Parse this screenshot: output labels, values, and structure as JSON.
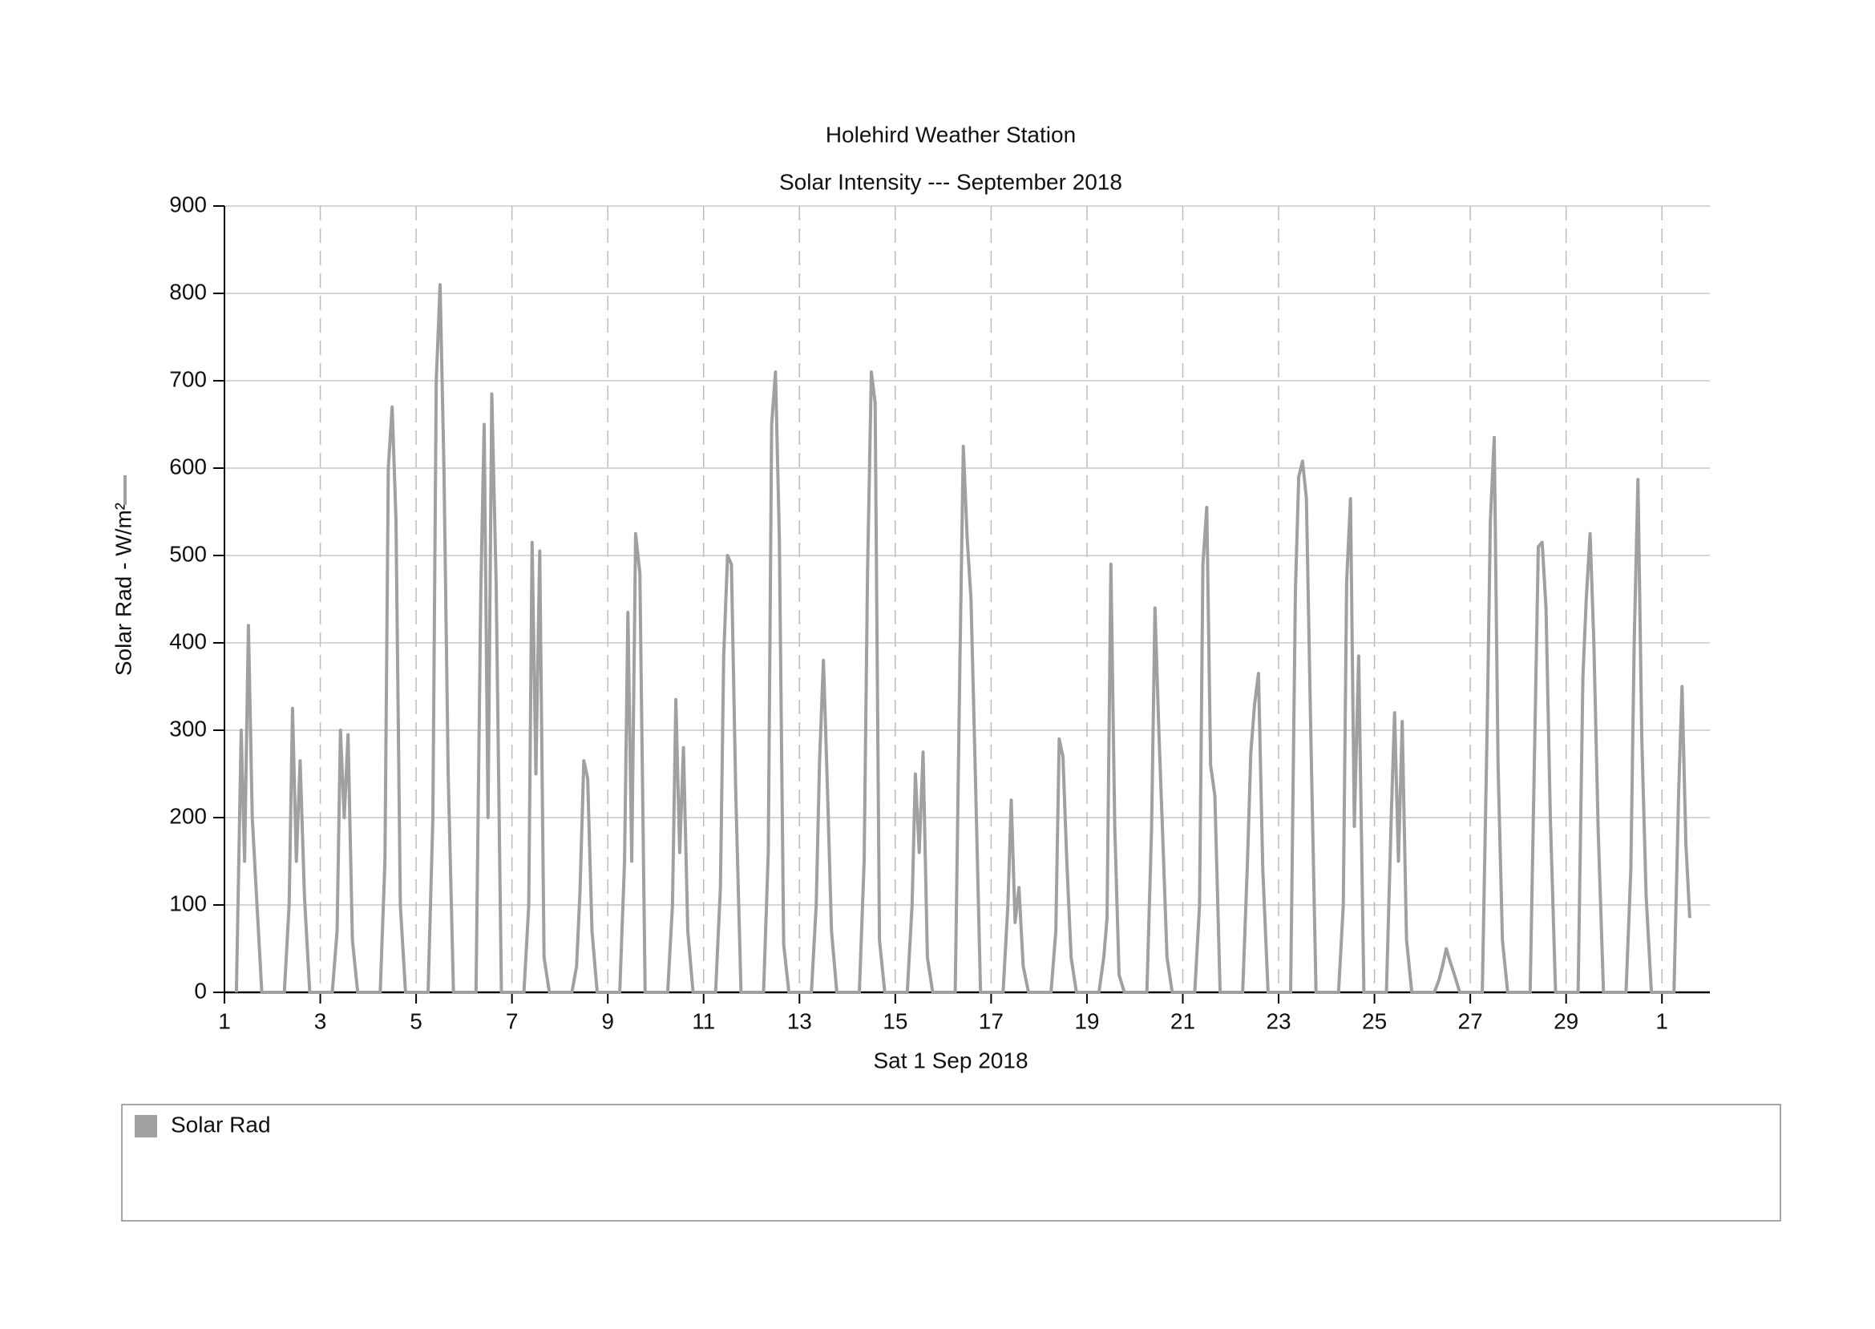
{
  "chart_data": {
    "type": "line",
    "title": "Holehird Weather Station",
    "subtitle": "Solar Intensity --- September 2018",
    "x_label": "Sat 1 Sep 2018",
    "y_label": "Solar Rad - W/m²",
    "x": [
      1.25,
      1.35,
      1.42,
      1.5,
      1.58,
      1.67,
      1.78,
      2.25,
      2.35,
      2.42,
      2.5,
      2.58,
      2.67,
      2.78,
      3.25,
      3.35,
      3.42,
      3.5,
      3.58,
      3.67,
      3.78,
      4.25,
      4.35,
      4.42,
      4.5,
      4.58,
      4.67,
      4.78,
      5.25,
      5.35,
      5.42,
      5.5,
      5.58,
      5.67,
      5.78,
      6.25,
      6.35,
      6.42,
      6.5,
      6.58,
      6.67,
      6.78,
      7.25,
      7.35,
      7.42,
      7.5,
      7.58,
      7.67,
      7.78,
      8.25,
      8.35,
      8.42,
      8.5,
      8.58,
      8.67,
      8.78,
      9.25,
      9.35,
      9.42,
      9.5,
      9.58,
      9.67,
      9.78,
      10.25,
      10.35,
      10.42,
      10.5,
      10.58,
      10.67,
      10.78,
      11.25,
      11.35,
      11.42,
      11.5,
      11.58,
      11.67,
      11.78,
      12.25,
      12.35,
      12.42,
      12.5,
      12.58,
      12.67,
      12.78,
      13.25,
      13.35,
      13.42,
      13.5,
      13.58,
      13.67,
      13.78,
      14.25,
      14.35,
      14.42,
      14.5,
      14.58,
      14.67,
      14.78,
      15.25,
      15.35,
      15.42,
      15.5,
      15.58,
      15.67,
      15.78,
      16.25,
      16.35,
      16.42,
      16.5,
      16.58,
      16.67,
      16.78,
      17.25,
      17.35,
      17.42,
      17.5,
      17.58,
      17.67,
      17.78,
      18.25,
      18.35,
      18.42,
      18.5,
      18.58,
      18.67,
      18.78,
      19.25,
      19.35,
      19.42,
      19.5,
      19.58,
      19.67,
      19.78,
      20.25,
      20.35,
      20.42,
      20.5,
      20.58,
      20.67,
      20.78,
      21.25,
      21.35,
      21.42,
      21.5,
      21.58,
      21.67,
      21.78,
      22.25,
      22.35,
      22.42,
      22.5,
      22.58,
      22.67,
      22.78,
      23.25,
      23.35,
      23.42,
      23.5,
      23.58,
      23.67,
      23.78,
      24.25,
      24.35,
      24.42,
      24.5,
      24.58,
      24.67,
      24.78,
      25.25,
      25.35,
      25.42,
      25.5,
      25.58,
      25.67,
      25.78,
      26.25,
      26.35,
      26.42,
      26.5,
      26.58,
      26.67,
      26.78,
      27.25,
      27.35,
      27.42,
      27.5,
      27.58,
      27.67,
      27.78,
      28.25,
      28.35,
      28.42,
      28.5,
      28.58,
      28.67,
      28.78,
      29.25,
      29.35,
      29.42,
      29.5,
      29.58,
      29.67,
      29.78,
      30.25,
      30.35,
      30.42,
      30.5,
      30.58,
      30.67,
      30.78,
      31.25,
      31.35,
      31.42,
      31.5,
      31.58
    ],
    "series": [
      {
        "name": "Solar Rad",
        "color": "#a0a0a0",
        "values": [
          0,
          300,
          150,
          420,
          200,
          110,
          0,
          0,
          100,
          325,
          150,
          265,
          110,
          0,
          0,
          70,
          300,
          200,
          295,
          60,
          0,
          0,
          150,
          600,
          670,
          540,
          100,
          0,
          0,
          200,
          700,
          810,
          600,
          250,
          0,
          0,
          460,
          650,
          200,
          685,
          470,
          0,
          0,
          100,
          515,
          250,
          505,
          40,
          0,
          0,
          30,
          115,
          265,
          245,
          70,
          0,
          0,
          150,
          435,
          150,
          525,
          480,
          0,
          0,
          100,
          335,
          160,
          280,
          70,
          0,
          0,
          120,
          385,
          500,
          490,
          230,
          0,
          0,
          160,
          650,
          710,
          520,
          55,
          0,
          0,
          100,
          265,
          380,
          240,
          70,
          0,
          0,
          150,
          480,
          710,
          675,
          60,
          0,
          0,
          100,
          250,
          160,
          275,
          40,
          0,
          0,
          380,
          625,
          520,
          450,
          250,
          0,
          0,
          100,
          220,
          80,
          120,
          30,
          0,
          0,
          70,
          290,
          270,
          150,
          40,
          0,
          0,
          40,
          85,
          490,
          190,
          20,
          0,
          0,
          190,
          440,
          300,
          180,
          40,
          0,
          0,
          100,
          490,
          555,
          260,
          225,
          0,
          0,
          150,
          275,
          330,
          365,
          140,
          0,
          0,
          460,
          590,
          608,
          565,
          300,
          0,
          0,
          100,
          470,
          565,
          190,
          385,
          0,
          0,
          200,
          320,
          150,
          310,
          60,
          0,
          0,
          15,
          30,
          50,
          35,
          20,
          0,
          0,
          300,
          540,
          635,
          260,
          60,
          0,
          0,
          300,
          510,
          515,
          440,
          200,
          0,
          0,
          360,
          450,
          525,
          400,
          185,
          0,
          0,
          140,
          400,
          587,
          290,
          110,
          0,
          0,
          230,
          350,
          170,
          85
        ]
      }
    ],
    "xlim": [
      1,
      32
    ],
    "xticks": [
      1,
      3,
      5,
      7,
      9,
      11,
      13,
      15,
      17,
      19,
      21,
      23,
      25,
      27,
      29,
      {
        "value": 31,
        "label": "1"
      }
    ],
    "ylim": [
      0,
      900
    ],
    "yticks": [
      0,
      100,
      200,
      300,
      400,
      500,
      600,
      700,
      800,
      900
    ],
    "grid": true
  }
}
